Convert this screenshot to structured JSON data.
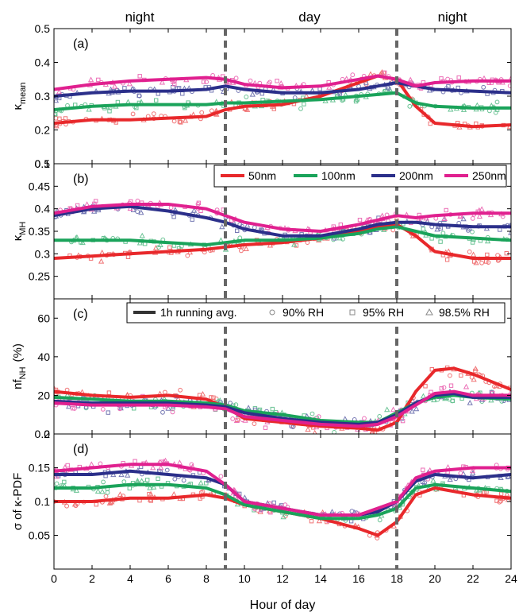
{
  "figure": {
    "period_labels": [
      "night",
      "day",
      "night"
    ],
    "day_boundaries_hours": [
      9,
      18
    ],
    "xlabel": "Hour of day",
    "x_ticks": [
      "0",
      "2",
      "4",
      "6",
      "8",
      "10",
      "12",
      "14",
      "16",
      "18",
      "20",
      "22",
      "24"
    ]
  },
  "legend_size": {
    "entries": [
      "50nm",
      "100nm",
      "200nm",
      "250nm"
    ],
    "colors": [
      "#e8282b",
      "#1aa35a",
      "#2b2f8a",
      "#e0208f"
    ]
  },
  "legend_marker": {
    "line_label": "1h running avg.",
    "circle_label": "90% RH",
    "square_label": "95% RH",
    "triangle_label": "98.5% RH"
  },
  "chart_data": [
    {
      "type": "line",
      "panel_label": "(a)",
      "ylabel_main": "κ",
      "ylabel_sub": "mean",
      "xlim": [
        0,
        24
      ],
      "ylim": [
        0.1,
        0.5
      ],
      "y_ticks": [
        "0.1",
        "0.2",
        "0.3",
        "0.4",
        "0.5"
      ],
      "x": [
        0,
        2,
        4,
        6,
        8,
        9,
        10,
        12,
        14,
        16,
        17,
        18,
        19,
        20,
        22,
        24
      ],
      "series": [
        {
          "name": "50nm",
          "values": [
            0.22,
            0.23,
            0.23,
            0.235,
            0.24,
            0.26,
            0.27,
            0.275,
            0.3,
            0.34,
            0.36,
            0.35,
            0.27,
            0.22,
            0.21,
            0.215
          ]
        },
        {
          "name": "100nm",
          "values": [
            0.26,
            0.27,
            0.275,
            0.275,
            0.275,
            0.28,
            0.28,
            0.285,
            0.29,
            0.3,
            0.305,
            0.31,
            0.28,
            0.27,
            0.265,
            0.265
          ]
        },
        {
          "name": "200nm",
          "values": [
            0.3,
            0.31,
            0.315,
            0.315,
            0.32,
            0.33,
            0.32,
            0.31,
            0.31,
            0.32,
            0.33,
            0.34,
            0.33,
            0.32,
            0.315,
            0.31
          ]
        },
        {
          "name": "250nm",
          "values": [
            0.32,
            0.335,
            0.345,
            0.35,
            0.355,
            0.35,
            0.335,
            0.325,
            0.33,
            0.35,
            0.36,
            0.35,
            0.33,
            0.34,
            0.345,
            0.345
          ]
        }
      ]
    },
    {
      "type": "line",
      "panel_label": "(b)",
      "ylabel_main": "κ",
      "ylabel_sub": "MH",
      "xlim": [
        0,
        24
      ],
      "ylim": [
        0.2,
        0.5
      ],
      "y_ticks": [
        "0.25",
        "0.3",
        "0.35",
        "0.4",
        "0.45",
        "0.5"
      ],
      "x": [
        0,
        2,
        4,
        6,
        8,
        9,
        10,
        12,
        14,
        16,
        17,
        18,
        19,
        20,
        22,
        24
      ],
      "series": [
        {
          "name": "50nm",
          "values": [
            0.29,
            0.295,
            0.3,
            0.305,
            0.31,
            0.315,
            0.32,
            0.325,
            0.335,
            0.35,
            0.36,
            0.365,
            0.34,
            0.305,
            0.29,
            0.29
          ]
        },
        {
          "name": "100nm",
          "values": [
            0.33,
            0.33,
            0.33,
            0.325,
            0.32,
            0.325,
            0.33,
            0.33,
            0.335,
            0.345,
            0.355,
            0.36,
            0.35,
            0.34,
            0.335,
            0.33
          ]
        },
        {
          "name": "200nm",
          "values": [
            0.385,
            0.4,
            0.405,
            0.395,
            0.38,
            0.37,
            0.355,
            0.34,
            0.34,
            0.355,
            0.365,
            0.37,
            0.37,
            0.365,
            0.36,
            0.36
          ]
        },
        {
          "name": "250nm",
          "values": [
            0.39,
            0.405,
            0.41,
            0.41,
            0.4,
            0.385,
            0.37,
            0.355,
            0.35,
            0.365,
            0.375,
            0.385,
            0.38,
            0.385,
            0.39,
            0.39
          ]
        }
      ]
    },
    {
      "type": "line",
      "panel_label": "(c)",
      "ylabel_main": "nf",
      "ylabel_sub": "NH",
      "ylabel_suffix": "(%)",
      "xlim": [
        0,
        24
      ],
      "ylim": [
        0,
        70
      ],
      "y_ticks": [
        "0",
        "20",
        "40",
        "60"
      ],
      "x": [
        0,
        2,
        4,
        6,
        8,
        9,
        10,
        12,
        14,
        16,
        17,
        18,
        19,
        20,
        21,
        22,
        24
      ],
      "series": [
        {
          "name": "50nm",
          "values": [
            22,
            20,
            19,
            20,
            18,
            14,
            8,
            6,
            4,
            3,
            2,
            6,
            22,
            33,
            34,
            31,
            23
          ]
        },
        {
          "name": "100nm",
          "values": [
            19,
            18,
            17,
            17,
            16,
            15,
            12,
            10,
            7,
            6,
            6,
            11,
            16,
            19,
            20,
            19,
            18
          ]
        },
        {
          "name": "200nm",
          "values": [
            17,
            16,
            16,
            16,
            15,
            14,
            11,
            8,
            6,
            5,
            6,
            10,
            16,
            20,
            21,
            19,
            19
          ]
        },
        {
          "name": "250nm",
          "values": [
            16,
            15,
            15,
            15,
            14,
            13,
            9,
            7,
            5,
            4,
            5,
            9,
            15,
            21,
            22,
            20,
            20
          ]
        }
      ]
    },
    {
      "type": "line",
      "panel_label": "(d)",
      "ylabel_main": "σ of κ-PDF",
      "xlim": [
        0,
        24
      ],
      "ylim": [
        0,
        0.2
      ],
      "y_ticks": [
        "0.05",
        "0.1",
        "0.15",
        "0.2"
      ],
      "x": [
        0,
        2,
        4,
        6,
        8,
        9,
        10,
        12,
        14,
        16,
        17,
        18,
        19,
        20,
        22,
        24
      ],
      "series": [
        {
          "name": "50nm",
          "values": [
            0.1,
            0.1,
            0.105,
            0.105,
            0.11,
            0.105,
            0.095,
            0.085,
            0.075,
            0.06,
            0.05,
            0.07,
            0.11,
            0.12,
            0.11,
            0.105
          ]
        },
        {
          "name": "100nm",
          "values": [
            0.12,
            0.12,
            0.125,
            0.125,
            0.12,
            0.11,
            0.095,
            0.085,
            0.075,
            0.075,
            0.08,
            0.09,
            0.12,
            0.125,
            0.12,
            0.115
          ]
        },
        {
          "name": "200nm",
          "values": [
            0.14,
            0.14,
            0.145,
            0.14,
            0.135,
            0.125,
            0.1,
            0.09,
            0.08,
            0.08,
            0.085,
            0.1,
            0.13,
            0.14,
            0.135,
            0.14
          ]
        },
        {
          "name": "250nm",
          "values": [
            0.145,
            0.15,
            0.155,
            0.155,
            0.145,
            0.125,
            0.1,
            0.09,
            0.08,
            0.08,
            0.09,
            0.1,
            0.135,
            0.145,
            0.15,
            0.15
          ]
        }
      ]
    }
  ]
}
